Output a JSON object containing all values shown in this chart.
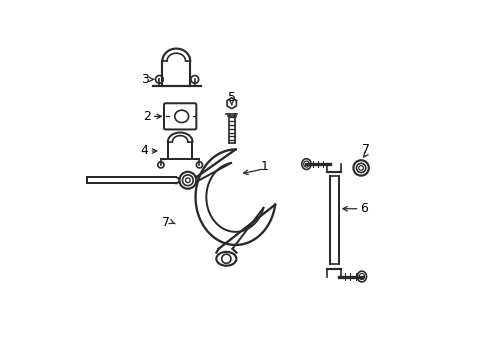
{
  "bg_color": "#ffffff",
  "line_color": "#2a2a2a",
  "text_color": "#000000",
  "fig_width": 4.89,
  "fig_height": 3.6,
  "dpi": 100
}
